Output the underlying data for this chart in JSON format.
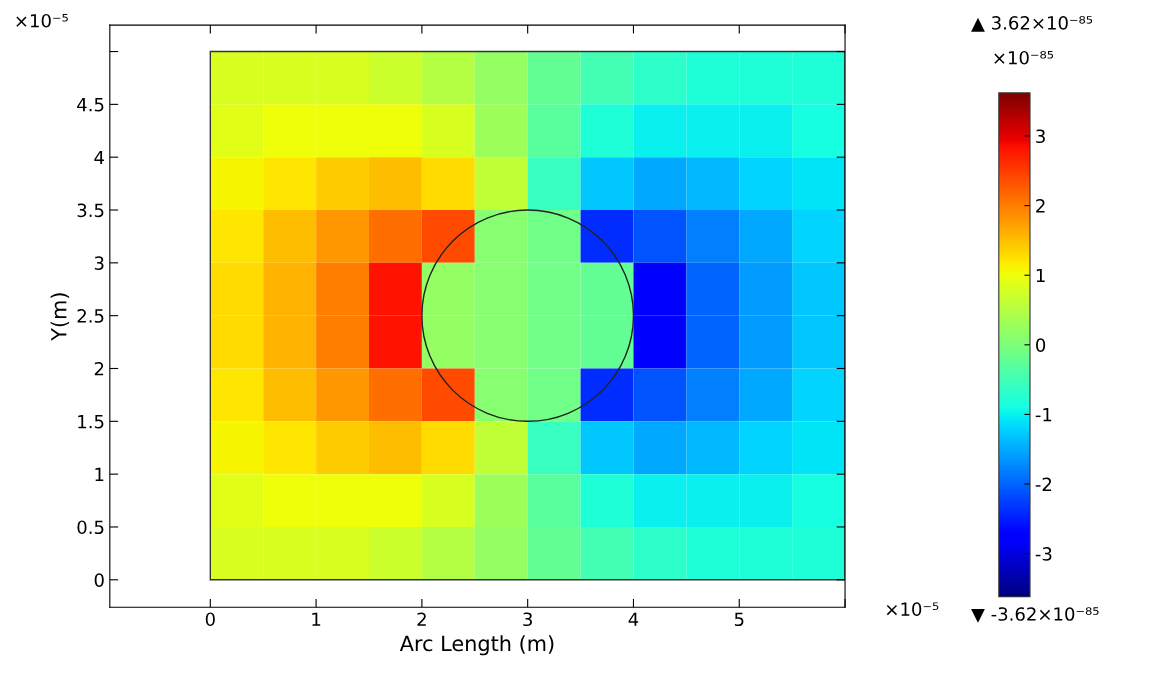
{
  "chart_data": {
    "type": "heatmap",
    "xlabel": "Arc Length (m)",
    "ylabel": "Y(m)",
    "x": [
      0.25,
      0.75,
      1.25,
      1.75,
      2.25,
      2.75,
      3.25,
      3.75,
      4.25,
      4.75,
      5.25,
      5.75
    ],
    "y": [
      4.75,
      4.25,
      3.75,
      3.25,
      2.75,
      2.25,
      1.75,
      1.25,
      0.75,
      0.25
    ],
    "cells": [
      [
        0.8,
        0.8,
        0.8,
        0.7,
        0.5,
        0.2,
        -0.2,
        -0.5,
        -0.7,
        -0.8,
        -0.8,
        -0.8
      ],
      [
        0.9,
        1.0,
        1.0,
        1.0,
        0.8,
        0.3,
        -0.3,
        -0.8,
        -1.0,
        -1.0,
        -1.0,
        -0.9
      ],
      [
        1.1,
        1.2,
        1.4,
        1.5,
        1.3,
        0.6,
        -0.6,
        -1.3,
        -1.5,
        -1.4,
        -1.2,
        -1.1
      ],
      [
        1.2,
        1.5,
        1.8,
        2.1,
        2.4,
        0.1,
        -0.1,
        -2.4,
        -2.1,
        -1.8,
        -1.5,
        -1.2
      ],
      [
        1.3,
        1.6,
        2.0,
        2.8,
        0.2,
        0.1,
        -0.1,
        -0.2,
        -2.8,
        -2.0,
        -1.6,
        -1.3
      ],
      [
        1.3,
        1.6,
        2.0,
        2.8,
        0.2,
        0.1,
        -0.1,
        -0.2,
        -2.8,
        -2.0,
        -1.6,
        -1.3
      ],
      [
        1.2,
        1.5,
        1.8,
        2.1,
        2.4,
        0.1,
        -0.1,
        -2.4,
        -2.1,
        -1.8,
        -1.5,
        -1.2
      ],
      [
        1.1,
        1.2,
        1.4,
        1.5,
        1.3,
        0.6,
        -0.6,
        -1.3,
        -1.5,
        -1.4,
        -1.2,
        -1.1
      ],
      [
        0.9,
        1.0,
        1.0,
        1.0,
        0.8,
        0.3,
        -0.3,
        -0.8,
        -1.0,
        -1.0,
        -1.0,
        -0.9
      ],
      [
        0.8,
        0.8,
        0.8,
        0.7,
        0.5,
        0.2,
        -0.2,
        -0.5,
        -0.7,
        -0.8,
        -0.8,
        -0.8
      ]
    ],
    "xlim": [
      -0.95,
      6.0
    ],
    "ylim": [
      -0.26,
      5.25
    ],
    "xticks": [
      0,
      1,
      2,
      3,
      4,
      5,
      {
        "value": 6,
        "label": null
      }
    ],
    "yticks": [
      0,
      0.5,
      1,
      1.5,
      2,
      2.5,
      3,
      3.5,
      4,
      4.5,
      {
        "value": 5,
        "label": null
      }
    ],
    "clim": [
      -3.62,
      3.62
    ],
    "cticks": [
      -3,
      -2,
      -1,
      0,
      1,
      2,
      3
    ],
    "annotations": [
      "×10⁻⁵",
      "×10⁻⁵",
      "▲ 3.62×10⁻⁸⁵",
      "×10⁻⁸⁵",
      "▼ -3.62×10⁻⁸⁵"
    ]
  }
}
